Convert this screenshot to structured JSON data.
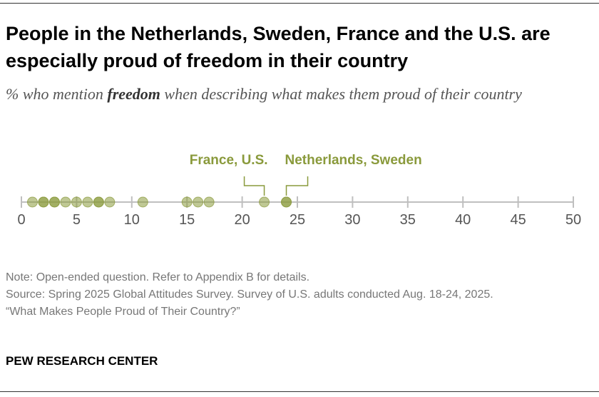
{
  "title": "People in the Netherlands, Sweden, France and the U.S. are especially proud of freedom in their country",
  "subtitle": {
    "before": "% who mention ",
    "emphasis": "freedom",
    "after": " when describing what makes them proud of their country"
  },
  "colors": {
    "accent": "#8a9a3c",
    "axis": "#bfbfbf",
    "tick_text": "#555555"
  },
  "chart_data": {
    "type": "scatter",
    "xlim": [
      0,
      50
    ],
    "ticks": [
      0,
      5,
      10,
      15,
      20,
      25,
      30,
      35,
      40,
      45,
      50
    ],
    "values": [
      1,
      2,
      2,
      3,
      3,
      4,
      5,
      6,
      7,
      7,
      8,
      11,
      15,
      16,
      17,
      22,
      24,
      24
    ],
    "annotations": [
      {
        "label": "France, U.S.",
        "x": 22
      },
      {
        "label": "Netherlands, Sweden",
        "x": 24
      }
    ]
  },
  "notes": {
    "note": "Note: Open-ended question. Refer to Appendix B for details.",
    "source": "Source: Spring 2025 Global Attitudes Survey. Survey of U.S. adults conducted Aug. 18-24, 2025.",
    "report": "“What Makes People Proud of Their Country?”"
  },
  "brand": "PEW RESEARCH CENTER"
}
